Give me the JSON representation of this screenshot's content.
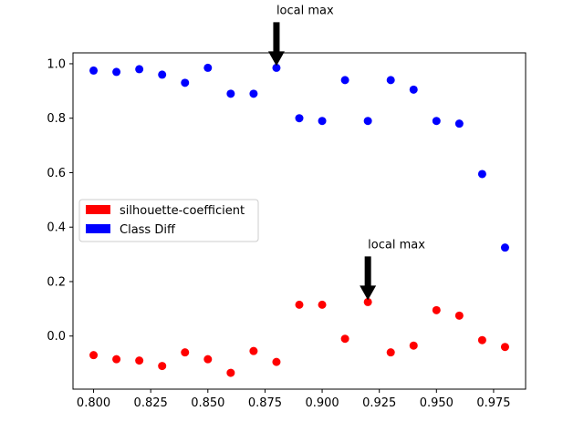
{
  "chart_data": {
    "type": "scatter",
    "title": "",
    "xlabel": "",
    "ylabel": "",
    "xlim": [
      0.791,
      0.989
    ],
    "ylim": [
      -0.195,
      1.04
    ],
    "xticks": [
      0.8,
      0.825,
      0.85,
      0.875,
      0.9,
      0.925,
      0.95,
      0.975
    ],
    "xtick_labels": [
      "0.800",
      "0.825",
      "0.850",
      "0.875",
      "0.900",
      "0.925",
      "0.950",
      "0.975"
    ],
    "yticks": [
      0.0,
      0.2,
      0.4,
      0.6,
      0.8,
      1.0
    ],
    "ytick_labels": [
      "0.0",
      "0.2",
      "0.4",
      "0.6",
      "0.8",
      "1.0"
    ],
    "grid": false,
    "legend_position": "center-left",
    "x": [
      0.8,
      0.81,
      0.82,
      0.83,
      0.84,
      0.85,
      0.86,
      0.87,
      0.88,
      0.89,
      0.9,
      0.91,
      0.92,
      0.93,
      0.94,
      0.95,
      0.96,
      0.97,
      0.98
    ],
    "series": [
      {
        "name": "silhouette-coefficient",
        "color": "#ff0000",
        "values": [
          -0.07,
          -0.085,
          -0.09,
          -0.11,
          -0.06,
          -0.085,
          -0.135,
          -0.055,
          -0.095,
          0.115,
          0.115,
          -0.01,
          0.125,
          -0.06,
          -0.035,
          0.095,
          0.075,
          -0.015,
          -0.04
        ]
      },
      {
        "name": "Class Diff",
        "color": "#0000ff",
        "values": [
          0.975,
          0.97,
          0.98,
          0.96,
          0.93,
          0.985,
          0.89,
          0.89,
          0.985,
          0.8,
          0.79,
          0.94,
          0.79,
          0.94,
          0.905,
          0.79,
          0.78,
          0.595,
          0.325
        ]
      }
    ],
    "annotations": [
      {
        "text": "local max",
        "x": 0.88,
        "y": 0.985
      },
      {
        "text": "local max",
        "x": 0.92,
        "y": 0.125
      }
    ]
  }
}
